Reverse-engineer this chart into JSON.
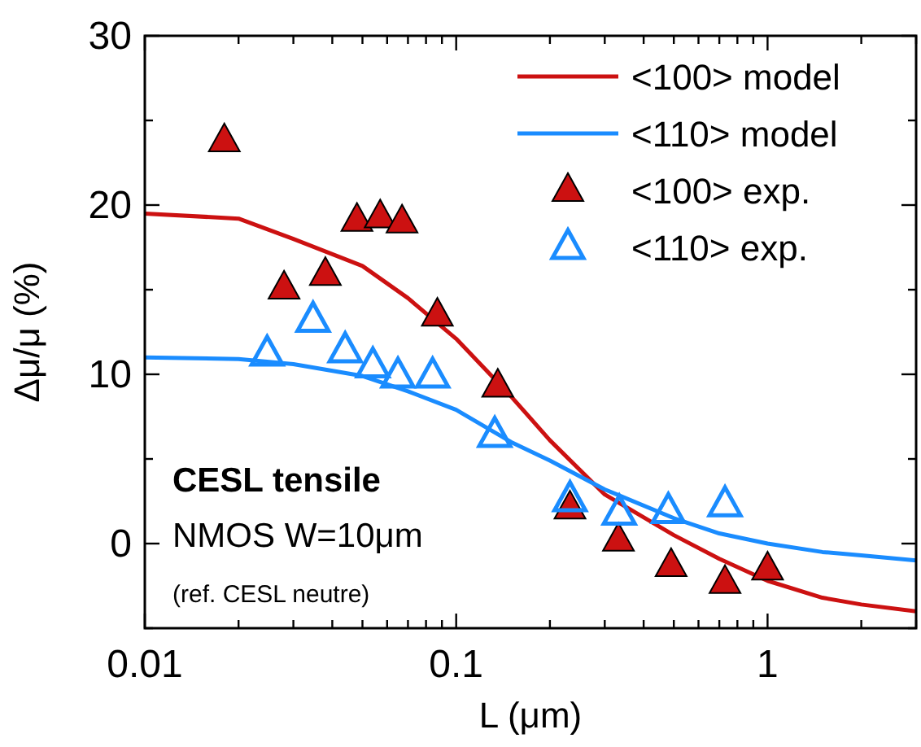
{
  "chart_data": {
    "type": "line",
    "xlabel": "L (μm)",
    "ylabel": "Δμ/μ (%)",
    "log": "x",
    "grid": false,
    "legend": "top right",
    "xlim": [
      0.01,
      3
    ],
    "ylim": [
      -5,
      30
    ],
    "xticks": [
      0.01,
      {
        "value": 0.02,
        "label": null
      },
      {
        "value": 0.03,
        "label": null
      },
      {
        "value": 0.04,
        "label": null
      },
      {
        "value": 0.05,
        "label": null
      },
      {
        "value": 0.06,
        "label": null
      },
      {
        "value": 0.07,
        "label": null
      },
      {
        "value": 0.08,
        "label": null
      },
      {
        "value": 0.09,
        "label": null
      },
      0.1,
      {
        "value": 0.2,
        "label": null
      },
      {
        "value": 0.3,
        "label": null
      },
      {
        "value": 0.4,
        "label": null
      },
      {
        "value": 0.5,
        "label": null
      },
      {
        "value": 0.6,
        "label": null
      },
      {
        "value": 0.7,
        "label": null
      },
      {
        "value": 0.8,
        "label": null
      },
      {
        "value": 0.9,
        "label": null
      },
      1,
      {
        "value": 2,
        "label": null
      },
      {
        "value": 3,
        "label": null
      }
    ],
    "yticks": [
      {
        "value": -5,
        "label": null
      },
      0,
      {
        "value": 5,
        "label": null
      },
      10,
      {
        "value": 15,
        "label": null
      },
      20,
      {
        "value": 25,
        "label": null
      },
      30
    ],
    "annotations": [
      "CESL tensile",
      "NMOS W=10μm",
      "(ref. CESL neutre)"
    ],
    "series": [
      {
        "name": "<100> model",
        "color": "#cc1111",
        "marker": "none",
        "x": [
          0.01,
          0.02,
          0.03,
          0.05,
          0.07,
          0.1,
          0.15,
          0.2,
          0.3,
          0.5,
          0.7,
          1,
          1.5,
          2,
          3
        ],
        "values": [
          19.5,
          19.2,
          18.0,
          16.4,
          14.5,
          12.1,
          8.7,
          6.1,
          2.9,
          0.5,
          -0.9,
          -2.2,
          -3.2,
          -3.6,
          -4.0
        ]
      },
      {
        "name": "<110> model",
        "color": "#1a8cff",
        "marker": "none",
        "x": [
          0.01,
          0.02,
          0.03,
          0.05,
          0.07,
          0.1,
          0.15,
          0.2,
          0.3,
          0.5,
          0.7,
          1,
          1.5,
          2,
          3
        ],
        "values": [
          11.0,
          10.9,
          10.6,
          9.9,
          9.0,
          7.9,
          6.0,
          4.9,
          3.2,
          1.5,
          0.6,
          0.0,
          -0.5,
          -0.7,
          -1.0
        ]
      },
      {
        "name": "<100> exp.",
        "type": "scatter",
        "color": "#cc1111",
        "marker": "triangle",
        "x": [
          0.018,
          0.028,
          0.038,
          0.048,
          0.057,
          0.067,
          0.087,
          0.136,
          0.232,
          0.332,
          0.49,
          0.73,
          1.0
        ],
        "values": [
          23.8,
          15.1,
          15.9,
          19.1,
          19.3,
          19.0,
          13.5,
          9.3,
          2.1,
          0.2,
          -1.3,
          -2.3,
          -1.5
        ]
      },
      {
        "name": "<110> exp.",
        "type": "scatter",
        "color": "#1a8cff",
        "marker": "triangle",
        "x": [
          0.0247,
          0.0347,
          0.044,
          0.054,
          0.065,
          0.084,
          0.133,
          0.232,
          0.334,
          0.48,
          0.73
        ],
        "values": [
          11.2,
          13.2,
          11.4,
          10.5,
          9.9,
          9.9,
          6.4,
          2.6,
          1.8,
          1.9,
          2.3
        ]
      }
    ]
  }
}
